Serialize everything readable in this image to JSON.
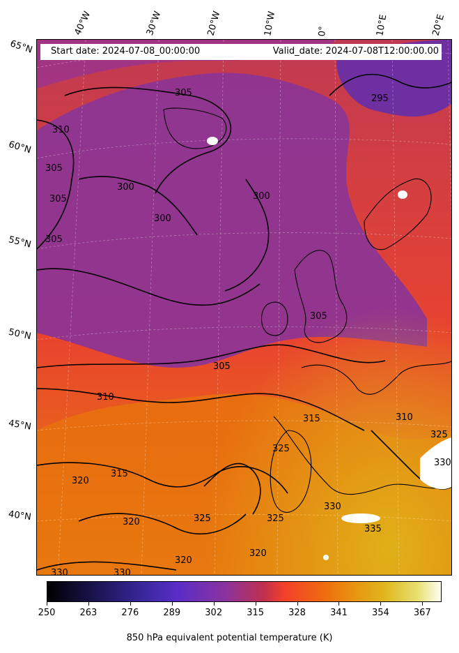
{
  "header": {
    "start_date": "Start date: 2024-07-08_00:00:00",
    "valid_date": "Valid_date: 2024-07-08T12:00:00.00"
  },
  "lon_labels": [
    "40°W",
    "30°W",
    "20°W",
    "10°W",
    "0°",
    "10°E",
    "20°E"
  ],
  "lat_labels": [
    "65°N",
    "60°N",
    "55°N",
    "50°N",
    "45°N",
    "40°N"
  ],
  "contour_labels": [
    "295",
    "300",
    "300",
    "300",
    "305",
    "305",
    "305",
    "305",
    "305",
    "305",
    "310",
    "310",
    "310",
    "315",
    "315",
    "320",
    "320",
    "320",
    "320",
    "325",
    "325",
    "325",
    "325",
    "330",
    "330",
    "330",
    "330",
    "335"
  ],
  "colorbar": {
    "ticks": [
      "250",
      "263",
      "276",
      "289",
      "302",
      "315",
      "328",
      "341",
      "354",
      "367"
    ],
    "label": "850 hPa equivalent potential temperature (K)",
    "range": [
      250,
      373
    ],
    "colormap": "CMRmap"
  },
  "colors": {
    "cool": "#7a2f9a",
    "mid": "#e8432f",
    "warm": "#e88010",
    "hot": "#e0a010"
  }
}
